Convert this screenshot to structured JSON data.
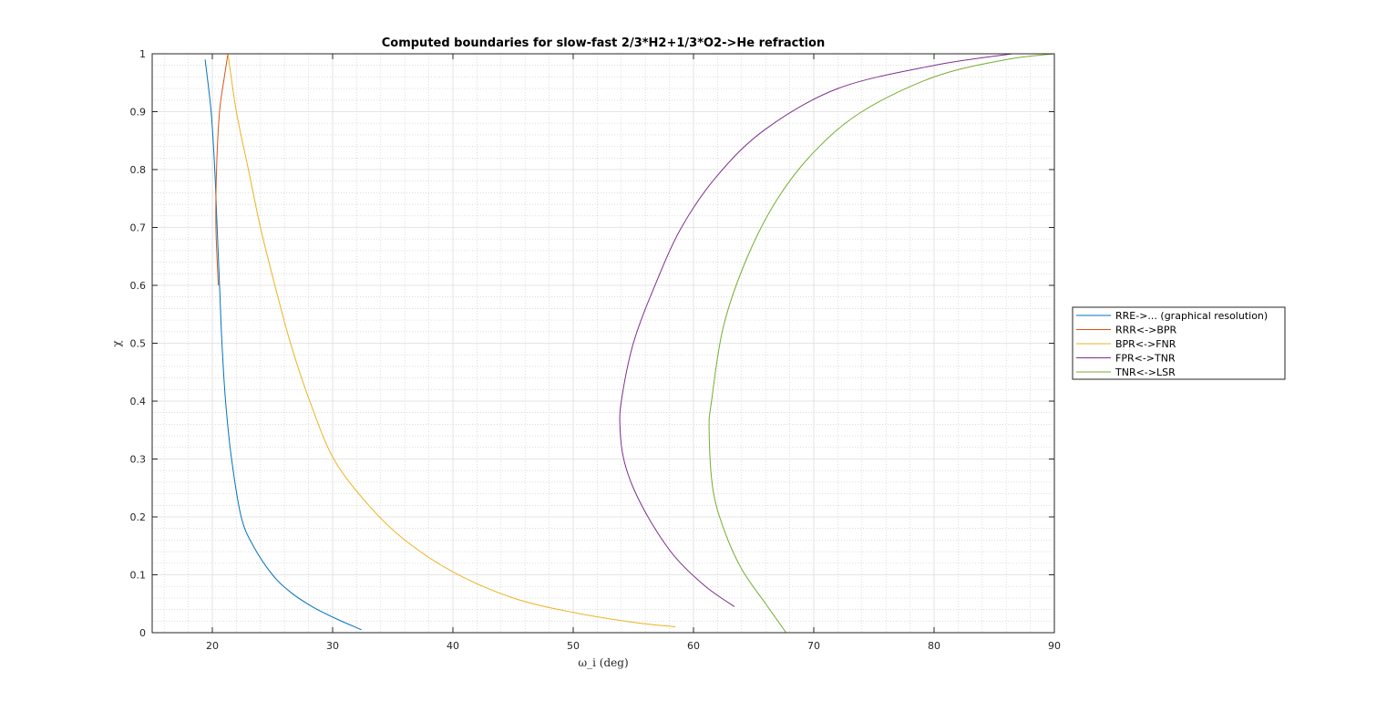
{
  "chart_data": {
    "type": "line",
    "title": "Computed boundaries for slow-fast 2/3*H2+1/3*O2->He refraction",
    "xlabel": "ω_i (deg)",
    "ylabel": "χ",
    "xlim": [
      15,
      90
    ],
    "ylim": [
      0,
      1
    ],
    "x_ticks": [
      "20",
      "30",
      "40",
      "50",
      "60",
      "70",
      "80",
      "90"
    ],
    "y_ticks": [
      "0",
      "0.1",
      "0.2",
      "0.3",
      "0.4",
      "0.5",
      "0.6",
      "0.7",
      "0.8",
      "0.9",
      "1"
    ],
    "grid": true,
    "minor_grid": true,
    "legend_position": "right",
    "series": [
      {
        "name": "RRE->... (graphical resolution)",
        "color": "#0072BD",
        "points": [
          [
            19.4,
            0.99
          ],
          [
            19.9,
            0.9
          ],
          [
            20.2,
            0.8
          ],
          [
            20.4,
            0.7
          ],
          [
            20.6,
            0.6
          ],
          [
            20.8,
            0.5
          ],
          [
            21.1,
            0.4
          ],
          [
            21.6,
            0.3
          ],
          [
            22.4,
            0.2
          ],
          [
            23.4,
            0.15
          ],
          [
            25.0,
            0.1
          ],
          [
            26.5,
            0.07
          ],
          [
            28.3,
            0.045
          ],
          [
            30.2,
            0.025
          ],
          [
            32.4,
            0.005
          ]
        ]
      },
      {
        "name": "RRR<->BPR",
        "color": "#D95319",
        "points": [
          [
            20.5,
            0.6
          ],
          [
            20.3,
            0.7
          ],
          [
            20.35,
            0.8
          ],
          [
            20.6,
            0.9
          ],
          [
            21.0,
            0.96
          ],
          [
            21.3,
            1.0
          ]
        ]
      },
      {
        "name": "BPR<->FNR",
        "color": "#EDB120",
        "points": [
          [
            21.3,
            1.0
          ],
          [
            22.0,
            0.9
          ],
          [
            23.0,
            0.8
          ],
          [
            24.0,
            0.7
          ],
          [
            25.2,
            0.6
          ],
          [
            26.5,
            0.5
          ],
          [
            28.1,
            0.4
          ],
          [
            30.1,
            0.3
          ],
          [
            33.0,
            0.22
          ],
          [
            36.0,
            0.16
          ],
          [
            40.0,
            0.105
          ],
          [
            45.0,
            0.06
          ],
          [
            50.0,
            0.035
          ],
          [
            55.0,
            0.018
          ],
          [
            58.5,
            0.01
          ]
        ]
      },
      {
        "name": "FPR<->TNR",
        "color": "#7E2F8E",
        "points": [
          [
            86.5,
            1.0
          ],
          [
            80.0,
            0.98
          ],
          [
            72.0,
            0.94
          ],
          [
            66.0,
            0.87
          ],
          [
            62.0,
            0.79
          ],
          [
            59.0,
            0.7
          ],
          [
            56.8,
            0.6
          ],
          [
            55.0,
            0.5
          ],
          [
            54.0,
            0.4
          ],
          [
            53.9,
            0.35
          ],
          [
            54.2,
            0.3
          ],
          [
            55.0,
            0.25
          ],
          [
            56.5,
            0.19
          ],
          [
            58.5,
            0.13
          ],
          [
            61.0,
            0.08
          ],
          [
            63.4,
            0.045
          ]
        ]
      },
      {
        "name": "TNR<->LSR",
        "color": "#77AC30",
        "points": [
          [
            90.0,
            1.0
          ],
          [
            86.0,
            0.99
          ],
          [
            80.0,
            0.96
          ],
          [
            74.0,
            0.9
          ],
          [
            70.0,
            0.83
          ],
          [
            67.0,
            0.75
          ],
          [
            64.5,
            0.65
          ],
          [
            62.5,
            0.53
          ],
          [
            61.5,
            0.4
          ],
          [
            61.3,
            0.35
          ],
          [
            61.6,
            0.25
          ],
          [
            62.5,
            0.18
          ],
          [
            64.0,
            0.11
          ],
          [
            66.0,
            0.05
          ],
          [
            67.7,
            0.0
          ]
        ]
      }
    ]
  }
}
